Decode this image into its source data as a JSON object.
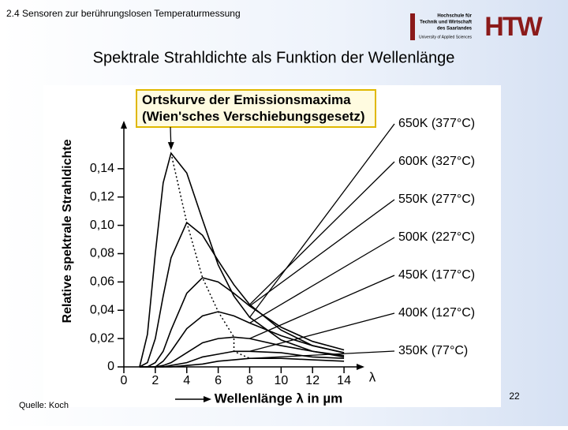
{
  "header": {
    "section": "2.4 Sensoren zur berührungslosen Temperaturmessung",
    "logo_lines": [
      "Hochschule für",
      "Technik und Wirtschaft",
      "des Saarlandes",
      "University of Applied Sciences"
    ],
    "logo_mark": "HTW"
  },
  "slide": {
    "title": "Spektrale Strahldichte als Funktion der Wellenlänge",
    "source": "Quelle: Koch",
    "page": "22"
  },
  "chart_data": {
    "type": "line",
    "annotation": "Ortskurve der Emissionsmaxima (Wien'sches Verschiebungsgesetz)",
    "y_label": "Relative spektrale Strahldichte",
    "x_label": "Wellenlänge λ in µm",
    "x_symbol": "λ",
    "x": [
      1,
      1.5,
      2,
      2.5,
      3,
      4,
      5,
      6,
      7,
      8,
      10,
      12,
      14
    ],
    "xlim": [
      0,
      15.2
    ],
    "xticks": [
      0,
      2,
      4,
      6,
      8,
      10,
      12,
      14
    ],
    "ylim": [
      0,
      0.17
    ],
    "yticks": [
      0,
      {
        "value": 0.02,
        "label": "0,02"
      },
      {
        "value": 0.04,
        "label": "0,04"
      },
      {
        "value": 0.06,
        "label": "0,06"
      },
      {
        "value": 0.08,
        "label": "0,08"
      },
      {
        "value": 0.1,
        "label": "0,10"
      },
      {
        "value": 0.12,
        "label": "0,12"
      },
      {
        "value": 0.14,
        "label": "0,14"
      }
    ],
    "series": [
      {
        "name": "650K (377°C)",
        "color": "#000000",
        "values": [
          0,
          0.023,
          0.08,
          0.13,
          0.151,
          0.137,
          0.104,
          0.072,
          0.05,
          0.035,
          0.019,
          0.011,
          0.007
        ]
      },
      {
        "name": "600K (327°C)",
        "color": "#000000",
        "values": [
          0,
          0.003,
          0.02,
          0.05,
          0.077,
          0.102,
          0.093,
          0.075,
          0.058,
          0.044,
          0.026,
          0.015,
          0.01
        ]
      },
      {
        "name": "550K (277°C)",
        "color": "#000000",
        "values": [
          0,
          0,
          0.003,
          0.011,
          0.026,
          0.052,
          0.063,
          0.06,
          0.052,
          0.043,
          0.028,
          0.018,
          0.012
        ]
      },
      {
        "name": "500K (227°C)",
        "color": "#000000",
        "values": [
          0,
          0,
          0,
          0.004,
          0.011,
          0.027,
          0.036,
          0.039,
          0.036,
          0.031,
          0.022,
          0.015,
          0.01
        ]
      },
      {
        "name": "450K (177°C)",
        "color": "#000000",
        "values": [
          0,
          0,
          0,
          0.001,
          0.003,
          0.01,
          0.017,
          0.02,
          0.021,
          0.02,
          0.015,
          0.011,
          0.008
        ]
      },
      {
        "name": "400K (127°C)",
        "color": "#000000",
        "values": [
          0,
          0,
          0,
          0,
          0.001,
          0.003,
          0.007,
          0.009,
          0.011,
          0.011,
          0.01,
          0.007,
          0.006
        ]
      },
      {
        "name": "350K (77°C)",
        "color": "#000000",
        "values": [
          0,
          0,
          0,
          0,
          0,
          0.001,
          0.002,
          0.004,
          0.005,
          0.006,
          0.006,
          0.005,
          0.004
        ]
      }
    ]
  }
}
